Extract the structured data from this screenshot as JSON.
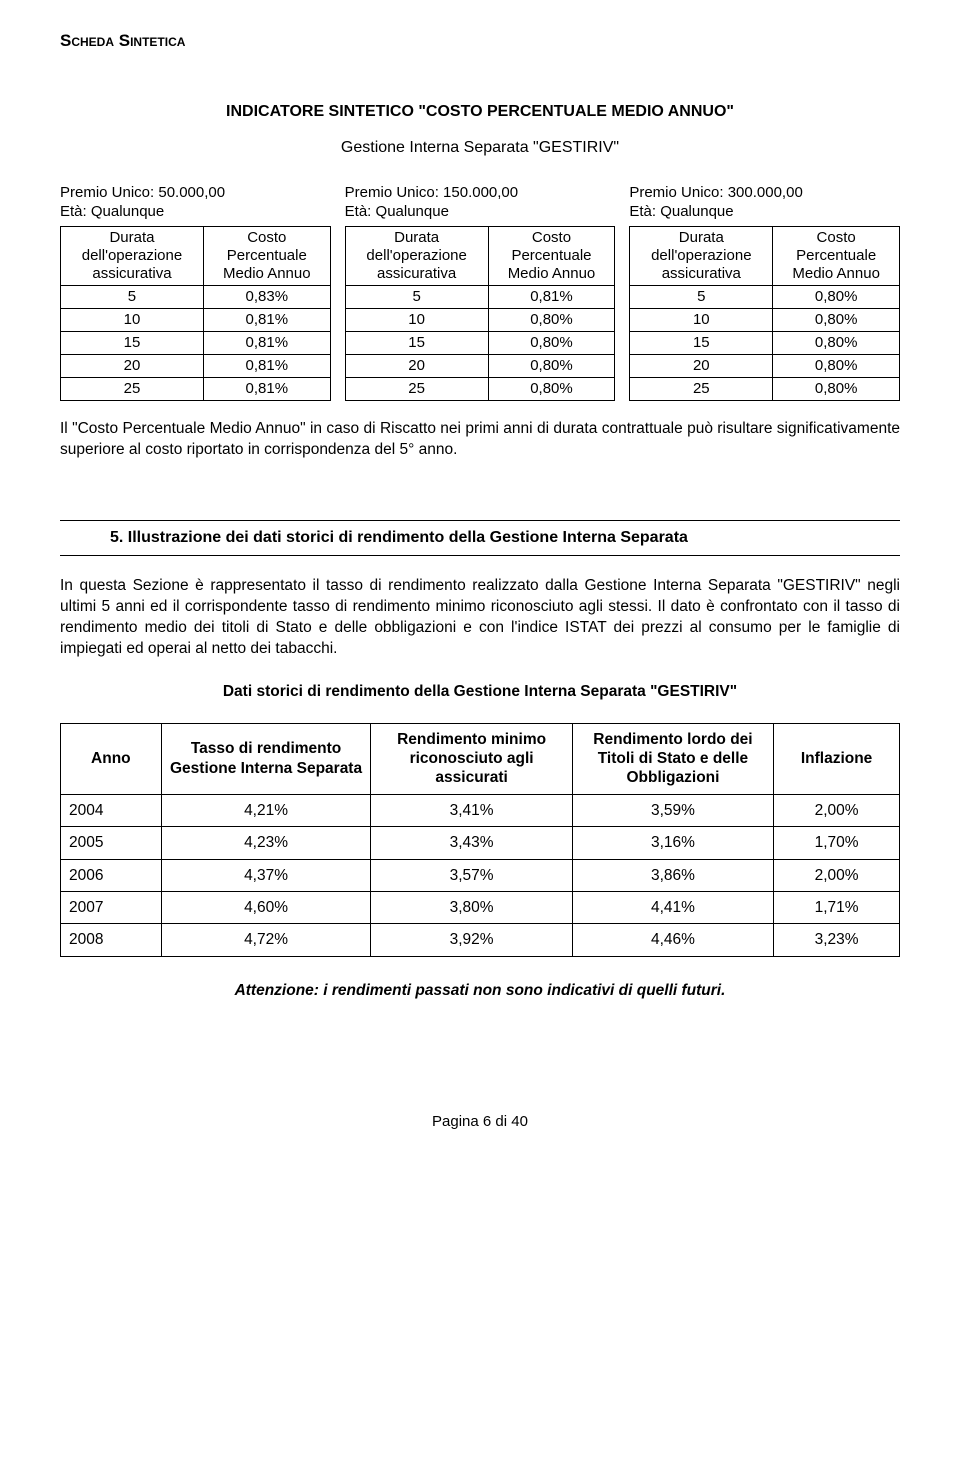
{
  "header": "Scheda Sintetica",
  "mainTitle": "INDICATORE SINTETICO \"COSTO PERCENTUALE MEDIO ANNUO\"",
  "subtitle": "Gestione Interna Separata \"GESTIRIV\"",
  "smallTables": {
    "col1Header": "Durata dell'operazione assicurativa",
    "col2Header": "Costo Percentuale Medio Annuo",
    "blocks": [
      {
        "captionLine1": "Premio Unico: 50.000,00",
        "captionLine2": "Età: Qualunque",
        "rows": [
          [
            "5",
            "0,83%"
          ],
          [
            "10",
            "0,81%"
          ],
          [
            "15",
            "0,81%"
          ],
          [
            "20",
            "0,81%"
          ],
          [
            "25",
            "0,81%"
          ]
        ]
      },
      {
        "captionLine1": "Premio Unico: 150.000,00",
        "captionLine2": "Età: Qualunque",
        "rows": [
          [
            "5",
            "0,81%"
          ],
          [
            "10",
            "0,80%"
          ],
          [
            "15",
            "0,80%"
          ],
          [
            "20",
            "0,80%"
          ],
          [
            "25",
            "0,80%"
          ]
        ]
      },
      {
        "captionLine1": "Premio Unico: 300.000,00",
        "captionLine2": "Età: Qualunque",
        "rows": [
          [
            "5",
            "0,80%"
          ],
          [
            "10",
            "0,80%"
          ],
          [
            "15",
            "0,80%"
          ],
          [
            "20",
            "0,80%"
          ],
          [
            "25",
            "0,80%"
          ]
        ]
      }
    ]
  },
  "note1": "Il \"Costo Percentuale Medio Annuo\" in caso di Riscatto nei primi anni di durata contrattuale può risultare significativamente superiore al costo riportato in corrispondenza del 5° anno.",
  "sectionHead": "5. Illustrazione dei dati storici di rendimento della Gestione Interna Separata",
  "para2": "In questa Sezione è rappresentato il tasso di rendimento realizzato dalla Gestione Interna Separata \"GESTIRIV\" negli ultimi 5 anni ed il corrispondente tasso di rendimento minimo riconosciuto agli stessi. Il dato è confrontato con il tasso di rendimento medio dei titoli di Stato e delle obbligazioni e con l'indice ISTAT dei prezzi al consumo per le famiglie di impiegati ed operai al netto dei tabacchi.",
  "bigTableTitle": "Dati storici di rendimento della Gestione Interna Separata \"GESTIRIV\"",
  "bigTable": {
    "headers": [
      "Anno",
      "Tasso di rendimento Gestione Interna Separata",
      "Rendimento minimo riconosciuto agli assicurati",
      "Rendimento lordo dei Titoli di Stato e delle Obbligazioni",
      "Inflazione"
    ],
    "rows": [
      [
        "2004",
        "4,21%",
        "3,41%",
        "3,59%",
        "2,00%"
      ],
      [
        "2005",
        "4,23%",
        "3,43%",
        "3,16%",
        "1,70%"
      ],
      [
        "2006",
        "4,37%",
        "3,57%",
        "3,86%",
        "2,00%"
      ],
      [
        "2007",
        "4,60%",
        "3,80%",
        "4,41%",
        "1,71%"
      ],
      [
        "2008",
        "4,72%",
        "3,92%",
        "4,46%",
        "3,23%"
      ]
    ],
    "colWidths": [
      "12%",
      "25%",
      "24%",
      "24%",
      "15%"
    ]
  },
  "attention": "Attenzione: i rendimenti passati non sono indicativi di quelli futuri.",
  "footer": "Pagina 6 di 40"
}
